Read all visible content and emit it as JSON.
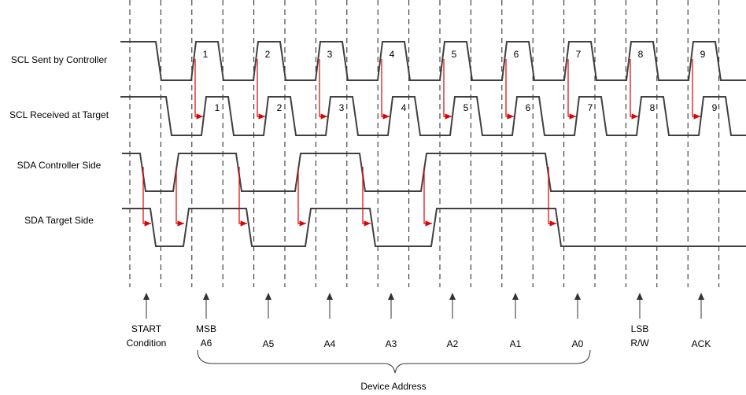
{
  "signals": [
    "SCL Sent by Controller",
    "SCL Received at Target",
    "SDA Controller Side",
    "SDA Target Side"
  ],
  "scl_sent_pulses": [
    "1",
    "2",
    "3",
    "4",
    "5",
    "6",
    "7",
    "8",
    "9"
  ],
  "scl_received_pulses": [
    "1",
    "2",
    "3",
    "4",
    "5",
    "6",
    "7",
    "8",
    "9"
  ],
  "markers": [
    {
      "lines": [
        "START",
        "Condition"
      ]
    },
    {
      "lines": [
        "MSB",
        "A6"
      ]
    },
    {
      "lines": [
        "A5"
      ]
    },
    {
      "lines": [
        "A4"
      ]
    },
    {
      "lines": [
        "A3"
      ]
    },
    {
      "lines": [
        "A2"
      ]
    },
    {
      "lines": [
        "A1"
      ]
    },
    {
      "lines": [
        "A0"
      ]
    },
    {
      "lines": [
        "LSB",
        "R/W"
      ]
    },
    {
      "lines": [
        "ACK"
      ]
    }
  ],
  "brace_label": "Device Address"
}
